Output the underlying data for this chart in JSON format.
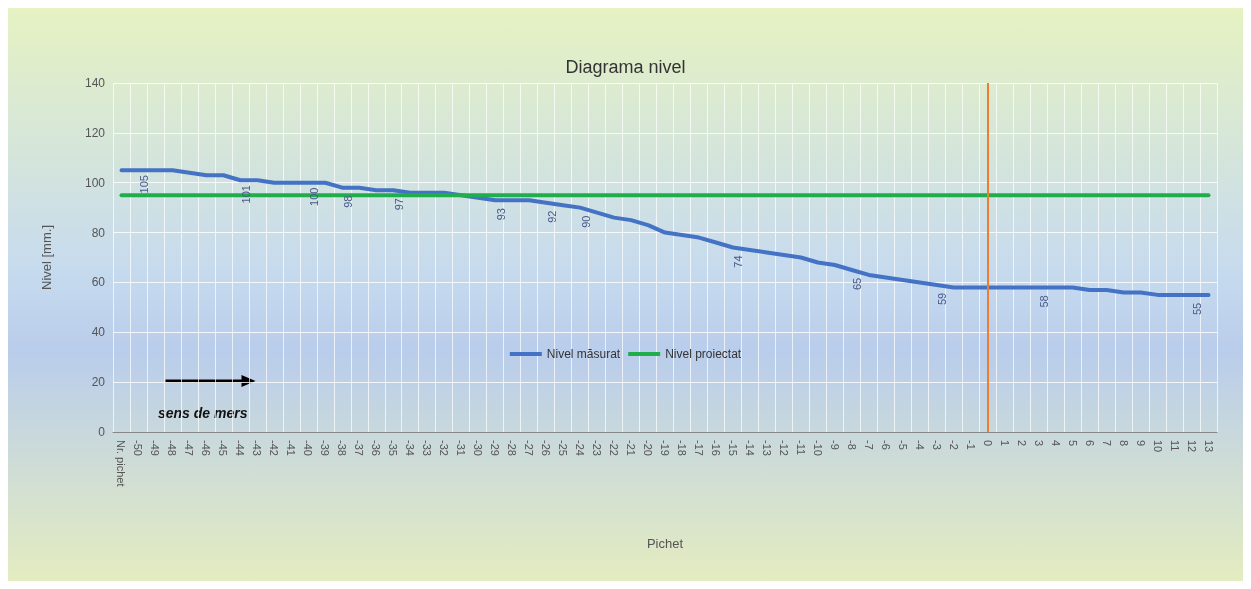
{
  "chart_data": {
    "type": "line",
    "title": "Diagrama nivel",
    "xlabel": "Pichet",
    "ylabel": "Nivel [mm.]",
    "categories": [
      "Nr. pichet",
      "-50",
      "-49",
      "-48",
      "-47",
      "-46",
      "-45",
      "-44",
      "-43",
      "-42",
      "-41",
      "-40",
      "-39",
      "-38",
      "-37",
      "-36",
      "-35",
      "-34",
      "-33",
      "-32",
      "-31",
      "-30",
      "-29",
      "-28",
      "-27",
      "-26",
      "-25",
      "-24",
      "-23",
      "-22",
      "-21",
      "-20",
      "-19",
      "-18",
      "-17",
      "-16",
      "-15",
      "-14",
      "-13",
      "-12",
      "-11",
      "-10",
      "-9",
      "-8",
      "-7",
      "-6",
      "-5",
      "-4",
      "-3",
      "-2",
      "-1",
      "0",
      "1",
      "2",
      "3",
      "4",
      "5",
      "6",
      "7",
      "8",
      "9",
      "10",
      "11",
      "12",
      "13"
    ],
    "series": [
      {
        "name": "Nivel măsurat",
        "color": "#4472c4",
        "values": [
          105,
          105,
          105,
          105,
          104,
          103,
          103,
          101,
          101,
          100,
          100,
          100,
          100,
          98,
          98,
          97,
          97,
          96,
          96,
          96,
          95,
          94,
          93,
          93,
          93,
          92,
          91,
          90,
          88,
          86,
          85,
          83,
          80,
          79,
          78,
          76,
          74,
          73,
          72,
          71,
          70,
          68,
          67,
          65,
          63,
          62,
          61,
          60,
          59,
          58,
          58,
          58,
          58,
          58,
          58,
          58,
          58,
          57,
          57,
          56,
          56,
          55,
          55,
          55,
          55
        ],
        "value_labels": [
          null,
          "105",
          null,
          null,
          null,
          null,
          null,
          "101",
          null,
          null,
          null,
          "100",
          null,
          "98",
          null,
          null,
          "97",
          null,
          null,
          null,
          null,
          null,
          "93",
          null,
          null,
          "92",
          null,
          "90",
          null,
          null,
          null,
          null,
          null,
          null,
          null,
          null,
          "74",
          null,
          null,
          null,
          null,
          null,
          null,
          "65",
          null,
          null,
          null,
          null,
          "59",
          null,
          null,
          null,
          null,
          null,
          "58",
          null,
          null,
          null,
          null,
          null,
          null,
          null,
          null,
          "55",
          null
        ]
      },
      {
        "name": "Nivel proiectat",
        "color": "#1fae4b",
        "values": [
          95,
          95,
          95,
          95,
          95,
          95,
          95,
          95,
          95,
          95,
          95,
          95,
          95,
          95,
          95,
          95,
          95,
          95,
          95,
          95,
          95,
          95,
          95,
          95,
          95,
          95,
          95,
          95,
          95,
          95,
          95,
          95,
          95,
          95,
          95,
          95,
          95,
          95,
          95,
          95,
          95,
          95,
          95,
          95,
          95,
          95,
          95,
          95,
          95,
          95,
          95,
          95,
          95,
          95,
          95,
          95,
          95,
          95,
          95,
          95,
          95,
          95,
          95,
          95,
          95
        ]
      }
    ],
    "ylim": [
      0,
      140
    ],
    "yticks": [
      0,
      20,
      40,
      60,
      80,
      100,
      120,
      140
    ],
    "grid": true,
    "legend": "center",
    "marker": "none",
    "line_style": "solid",
    "ref_lines": [
      {
        "axis": "x",
        "value": "0",
        "color": "#ed7d31"
      }
    ],
    "annotations": [
      "sens de mers"
    ]
  }
}
